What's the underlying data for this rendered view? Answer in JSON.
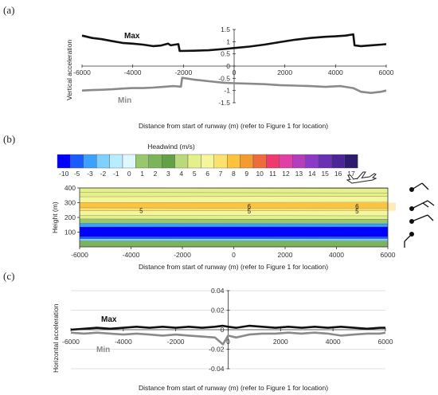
{
  "panel_labels": [
    "(a)",
    "(b)",
    "(c)"
  ],
  "colors": {
    "max": "#111111",
    "min": "#8a8a8a",
    "axis": "#333333",
    "grid": "#d9d9d9"
  },
  "colorbar": {
    "title": "Headwind (m/s)",
    "labels": [
      "-10",
      "-5",
      "-3",
      "-2",
      "-1",
      "0",
      "1",
      "2",
      "3",
      "4",
      "5",
      "6",
      "7",
      "8",
      "9",
      "10",
      "11",
      "12",
      "13",
      "14",
      "15",
      "16",
      "17"
    ],
    "colors": [
      "#0000ff",
      "#1a5cff",
      "#3ca0ff",
      "#7fd0ff",
      "#b8ecff",
      "#dff7ff",
      "#98c86c",
      "#7bb45a",
      "#62a145",
      "#b9d97a",
      "#e4f08a",
      "#f5f59b",
      "#fbe26e",
      "#fdc33d",
      "#f39b2e",
      "#ef6b3b",
      "#ee3a6c",
      "#e23fa6",
      "#b33dbd",
      "#8a3ac7",
      "#6a2fb2",
      "#4b2597",
      "#2e1a6e"
    ]
  },
  "chart_data": [
    {
      "type": "line",
      "panel": "(a)",
      "ylabel": "Vertical acceleration",
      "xlabel": "Distance from start of runway (m) (refer to Figure 1 for location)",
      "xlim": [
        -6000,
        6000
      ],
      "ylim": [
        -1.5,
        1.5
      ],
      "xticks": [
        "-6000",
        "-4000",
        "-2000",
        "0",
        "2000",
        "4000",
        "6000"
      ],
      "yticks": [
        "-1.5",
        "-1",
        "-0.5",
        "0",
        "0.5",
        "1",
        "1.5"
      ],
      "series": [
        {
          "name": "Max",
          "x": [
            -6000,
            -5600,
            -5200,
            -4800,
            -4400,
            -4000,
            -3600,
            -3200,
            -2900,
            -2600,
            -2500,
            -2200,
            -2150,
            -1600,
            -1000,
            -400,
            0,
            600,
            1200,
            1800,
            2400,
            3000,
            3600,
            4000,
            4400,
            4700,
            4750,
            5000,
            5400,
            5800,
            6000
          ],
          "values": [
            1.25,
            1.15,
            1.1,
            1.02,
            0.95,
            0.92,
            0.88,
            0.82,
            0.84,
            0.92,
            0.85,
            0.9,
            0.62,
            0.63,
            0.65,
            0.7,
            0.74,
            0.8,
            0.88,
            0.98,
            1.08,
            1.15,
            1.2,
            1.22,
            1.25,
            1.3,
            0.85,
            0.82,
            0.85,
            0.88,
            0.9
          ]
        },
        {
          "name": "Min",
          "x": [
            -6000,
            -5600,
            -5200,
            -4800,
            -4400,
            -4000,
            -3600,
            -3200,
            -2800,
            -2400,
            -2100,
            -2050,
            -1600,
            -1000,
            -400,
            0,
            600,
            1200,
            1800,
            2400,
            3000,
            3600,
            4200,
            4700,
            5000,
            5400,
            5800,
            6000
          ],
          "values": [
            -1.0,
            -0.98,
            -0.97,
            -0.95,
            -0.92,
            -0.9,
            -0.9,
            -0.88,
            -0.85,
            -0.82,
            -0.84,
            -0.48,
            -0.55,
            -0.62,
            -0.68,
            -0.7,
            -0.72,
            -0.74,
            -0.78,
            -0.8,
            -0.82,
            -0.85,
            -0.82,
            -0.9,
            -1.05,
            -1.1,
            -1.05,
            -1.0
          ]
        }
      ]
    },
    {
      "type": "heatmap",
      "panel": "(b)",
      "ylabel": "Height (m)",
      "xlabel": "Distance from start of runway (m) (refer to Figure 1 for location)",
      "xlim": [
        -6000,
        6000
      ],
      "ylim": [
        0,
        400
      ],
      "xticks": [
        "-6000",
        "-4000",
        "-2000",
        "0",
        "2000",
        "4000",
        "6000"
      ],
      "yticks": [
        "100",
        "200",
        "300",
        "400"
      ],
      "contour_labels": [
        {
          "text": "5",
          "x": -3600,
          "y": 245
        },
        {
          "text": "6",
          "x": 600,
          "y": 275
        },
        {
          "text": "5",
          "x": 600,
          "y": 242
        },
        {
          "text": "6",
          "x": 4800,
          "y": 275
        },
        {
          "text": "5",
          "x": 4800,
          "y": 242
        }
      ],
      "bands": [
        {
          "y0": 0,
          "y1": 40,
          "value": 2
        },
        {
          "y0": 40,
          "y1": 55,
          "value": -2
        },
        {
          "y0": 55,
          "y1": 70,
          "value": -5
        },
        {
          "y0": 70,
          "y1": 135,
          "value": -10
        },
        {
          "y0": 135,
          "y1": 160,
          "value": -3
        },
        {
          "y0": 160,
          "y1": 190,
          "value": 1
        },
        {
          "y0": 190,
          "y1": 215,
          "value": 5
        },
        {
          "y0": 215,
          "y1": 245,
          "value": 6
        },
        {
          "y0": 245,
          "y1": 265,
          "value": 7
        },
        {
          "y0": 265,
          "y1": 300,
          "value": 8
        },
        {
          "y0": 300,
          "y1": 340,
          "value": 6
        },
        {
          "y0": 340,
          "y1": 370,
          "value": 5
        },
        {
          "y0": 370,
          "y1": 400,
          "value": 5
        }
      ]
    },
    {
      "type": "line",
      "panel": "(c)",
      "ylabel": "Horizontal acceleration",
      "xlabel": "Distance from start of runway (m) (refer to Figure 1 for location)",
      "xlim": [
        -6000,
        6000
      ],
      "ylim": [
        -0.04,
        0.04
      ],
      "xticks": [
        "-6000",
        "-4000",
        "-2000",
        "0",
        "2000",
        "4000",
        "6000"
      ],
      "yticks": [
        "-0.04",
        "-0.02",
        "0",
        "0.02",
        "0.04"
      ],
      "series": [
        {
          "name": "Max",
          "x": [
            -6000,
            -5500,
            -5000,
            -4500,
            -4000,
            -3500,
            -3000,
            -2500,
            -2000,
            -1500,
            -1000,
            -500,
            -200,
            0,
            300,
            800,
            1300,
            1800,
            2300,
            2800,
            3300,
            3800,
            4300,
            4800,
            5300,
            5800,
            6000
          ],
          "values": [
            0.0,
            0.001,
            0.002,
            0.001,
            0.002,
            0.003,
            0.002,
            0.003,
            0.002,
            0.003,
            0.002,
            0.003,
            0.004,
            0.003,
            0.002,
            0.004,
            0.003,
            0.002,
            0.003,
            0.002,
            0.003,
            0.002,
            0.003,
            0.002,
            0.001,
            0.002,
            0.002
          ]
        },
        {
          "name": "Min",
          "x": [
            -6000,
            -5500,
            -5000,
            -4500,
            -4000,
            -3500,
            -3000,
            -2500,
            -2000,
            -1500,
            -1000,
            -500,
            -200,
            0,
            300,
            800,
            1300,
            1800,
            2300,
            2800,
            3300,
            3800,
            4300,
            4800,
            5300,
            5800,
            6000
          ],
          "values": [
            -0.003,
            -0.004,
            -0.003,
            -0.004,
            -0.005,
            -0.004,
            -0.005,
            -0.006,
            -0.005,
            -0.006,
            -0.007,
            -0.008,
            -0.015,
            -0.006,
            -0.008,
            -0.005,
            -0.004,
            -0.004,
            -0.003,
            -0.004,
            -0.003,
            -0.004,
            -0.006,
            -0.005,
            -0.004,
            -0.004,
            -0.003
          ]
        }
      ]
    }
  ]
}
